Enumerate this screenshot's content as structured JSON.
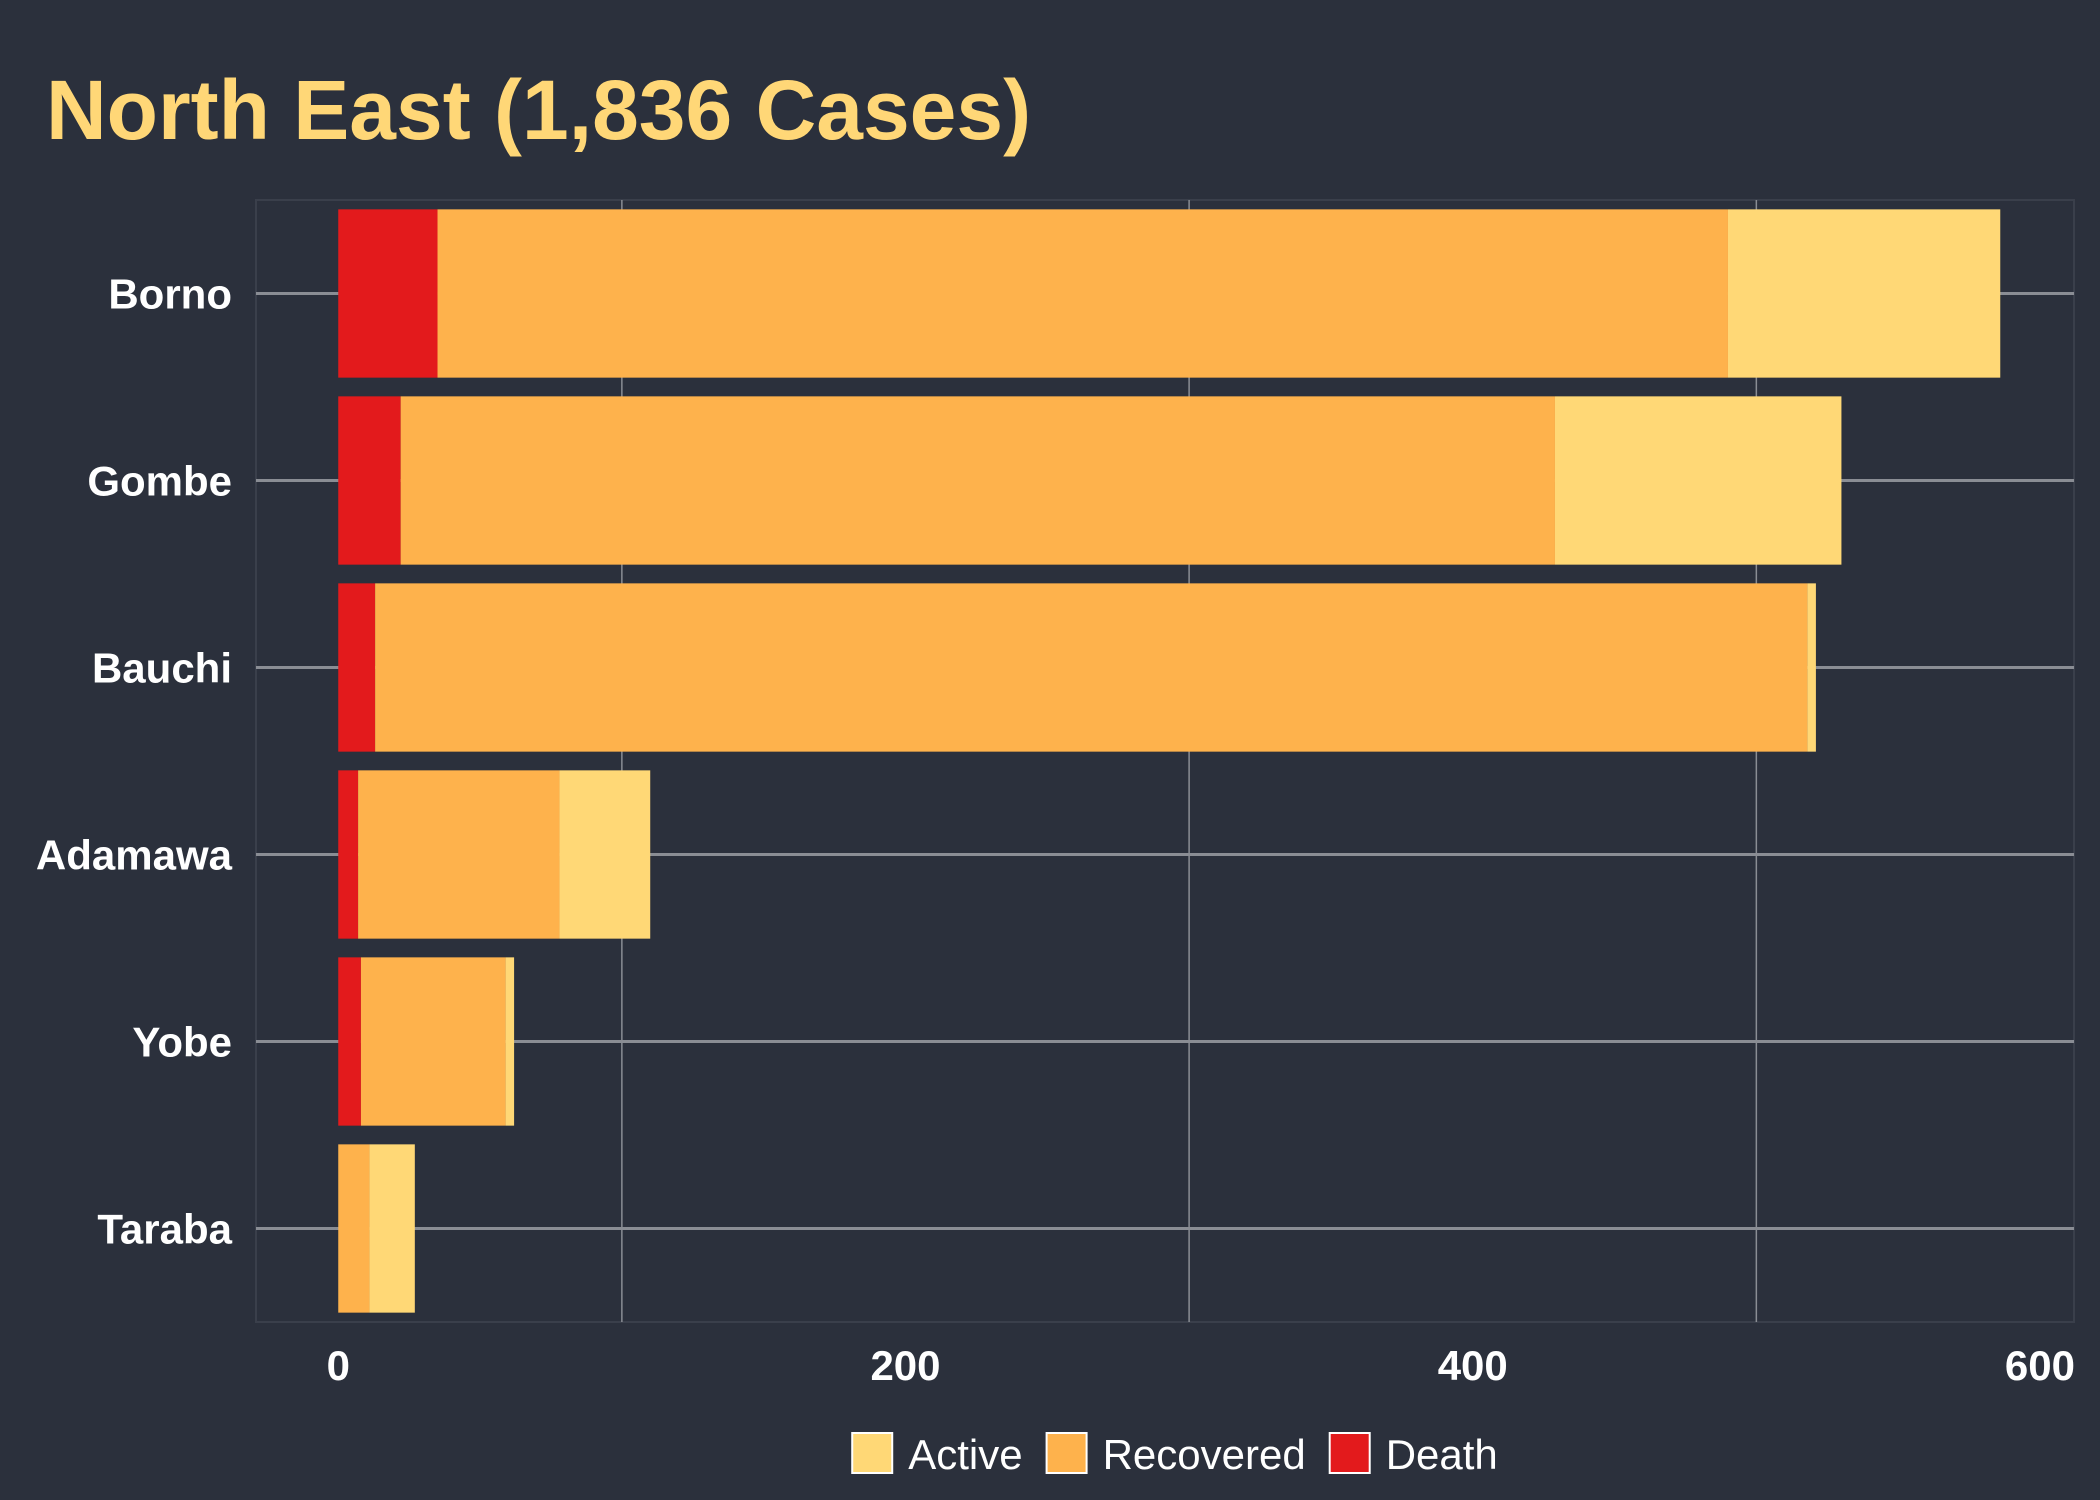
{
  "chart_data": {
    "type": "bar",
    "orientation": "horizontal",
    "stacked": true,
    "title": "North East (1,836 Cases)",
    "xlabel": "",
    "ylabel": "",
    "categories": [
      "Borno",
      "Gombe",
      "Bauchi",
      "Adamawa",
      "Yobe",
      "Taraba"
    ],
    "series": [
      {
        "name": "Death",
        "color": "#e31a1c",
        "values": [
          35,
          22,
          13,
          7,
          8,
          0
        ]
      },
      {
        "name": "Recovered",
        "color": "#feb24c",
        "values": [
          455,
          407,
          505,
          71,
          51,
          11
        ]
      },
      {
        "name": "Active",
        "color": "#ffd876",
        "values": [
          96,
          101,
          3,
          32,
          3,
          16
        ]
      }
    ],
    "xlim": [
      -29,
      612
    ],
    "x_ticks": [
      0,
      200,
      400,
      600
    ],
    "x_tick_labels": [
      "0",
      "200",
      "400",
      "600"
    ],
    "grid": true,
    "legend": {
      "position": "bottom",
      "order": [
        "Active",
        "Recovered",
        "Death"
      ]
    }
  },
  "colors": {
    "background": "#2b303c",
    "title": "#ffd777",
    "grid": "#8a8d94",
    "text": "#ffffff"
  }
}
